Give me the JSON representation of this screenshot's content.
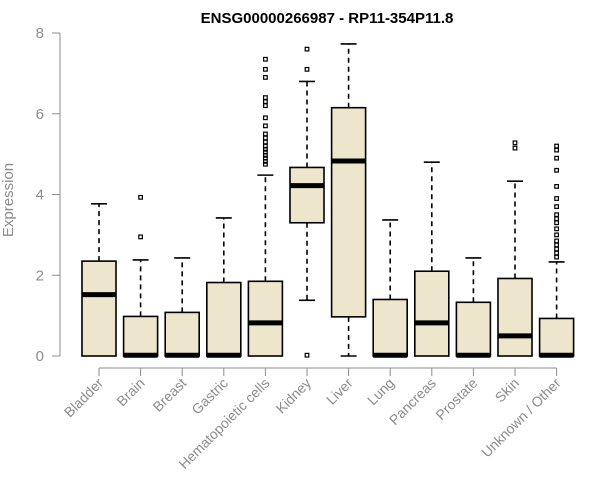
{
  "chart_data": {
    "type": "boxplot",
    "title": "ENSG00000266987 - RP11-354P11.8",
    "xlabel": "",
    "ylabel": "Expression",
    "ylim": [
      0,
      8
    ],
    "yticks": [
      0,
      2,
      4,
      6,
      8
    ],
    "grid": false,
    "legend": "none",
    "box_fill": "#ede6cc",
    "categories": [
      "Bladder",
      "Brain",
      "Breast",
      "Gastric",
      "Hematopoietic cells",
      "Kidney",
      "Liver",
      "Lung",
      "Pancreas",
      "Prostate",
      "Skin",
      "Unknown / Other"
    ],
    "boxes": [
      {
        "min": 0,
        "q1": 0,
        "median": 1.52,
        "q3": 2.35,
        "max": 3.77,
        "outliers": []
      },
      {
        "min": 0,
        "q1": 0,
        "median": 0.02,
        "q3": 0.98,
        "max": 2.38,
        "outliers": [
          2.95,
          3.93
        ]
      },
      {
        "min": 0,
        "q1": 0,
        "median": 0.02,
        "q3": 1.08,
        "max": 2.43,
        "outliers": []
      },
      {
        "min": 0,
        "q1": 0,
        "median": 0.02,
        "q3": 1.82,
        "max": 3.42,
        "outliers": []
      },
      {
        "min": 0,
        "q1": 0,
        "median": 0.82,
        "q3": 1.85,
        "max": 4.48,
        "outliers": [
          4.75,
          4.82,
          4.9,
          4.97,
          5.05,
          5.12,
          5.2,
          5.3,
          5.4,
          5.5,
          5.7,
          5.9,
          6.2,
          6.3,
          6.4,
          6.9,
          7.1,
          7.35
        ]
      },
      {
        "min": 1.38,
        "q1": 3.3,
        "median": 4.22,
        "q3": 4.67,
        "max": 6.8,
        "outliers": [
          0.02,
          7.1,
          7.6
        ]
      },
      {
        "min": 0,
        "q1": 0.97,
        "median": 4.83,
        "q3": 6.15,
        "max": 7.73,
        "outliers": []
      },
      {
        "min": 0,
        "q1": 0,
        "median": 0.02,
        "q3": 1.4,
        "max": 3.37,
        "outliers": []
      },
      {
        "min": 0,
        "q1": 0,
        "median": 0.82,
        "q3": 2.1,
        "max": 4.8,
        "outliers": []
      },
      {
        "min": 0,
        "q1": 0,
        "median": 0.02,
        "q3": 1.33,
        "max": 2.43,
        "outliers": []
      },
      {
        "min": 0,
        "q1": 0,
        "median": 0.5,
        "q3": 1.92,
        "max": 4.33,
        "outliers": [
          5.15,
          5.28
        ]
      },
      {
        "min": 0,
        "q1": 0,
        "median": 0.02,
        "q3": 0.93,
        "max": 2.33,
        "outliers": [
          2.45,
          2.55,
          2.65,
          2.75,
          2.85,
          3.0,
          3.15,
          3.3,
          3.4,
          3.5,
          3.7,
          3.9,
          4.2,
          4.6,
          4.9,
          5.1,
          5.2
        ]
      }
    ]
  }
}
